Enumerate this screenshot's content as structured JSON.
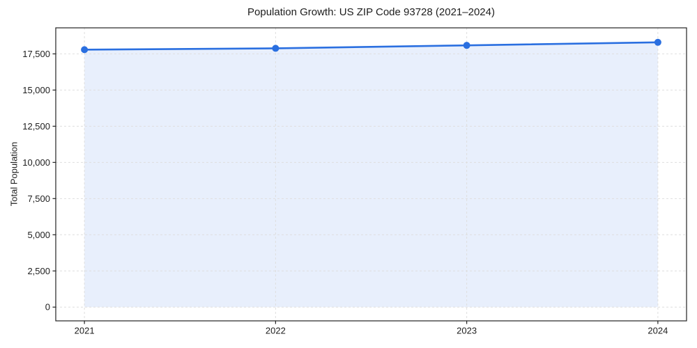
{
  "chart_data": {
    "type": "line",
    "title": "Population Growth: US ZIP Code 93728 (2021–2024)",
    "xlabel": "",
    "ylabel": "Total Population",
    "x": [
      2021,
      2022,
      2023,
      2024
    ],
    "series": [
      {
        "name": "Total Population",
        "values": [
          17790,
          17885,
          18090,
          18300
        ]
      }
    ],
    "xticks": {
      "values": [
        2021,
        2022,
        2023,
        2024
      ],
      "labels": [
        "2021",
        "2022",
        "2023",
        "2024"
      ]
    },
    "yticks": {
      "values": [
        0,
        2500,
        5000,
        7500,
        10000,
        12500,
        15000,
        17500
      ],
      "labels": [
        "0",
        "2,500",
        "5,000",
        "7,500",
        "10,000",
        "12,500",
        "15,000",
        "17,500"
      ]
    },
    "xlim": [
      2020.85,
      2024.15
    ],
    "ylim": [
      -950,
      19300
    ],
    "grid": {
      "show": true,
      "style": "dashed",
      "axes": "both"
    },
    "legend": {
      "show": false
    },
    "area_fill": true,
    "markers": true,
    "marker_radius": 5,
    "line_width": 2.6,
    "colors": {
      "line": "#2a6fe0",
      "marker": "#2a6fe0",
      "area": "#2a6fe0",
      "area_opacity": 0.11,
      "grid": "#dedede",
      "spine": "#222222",
      "text": "#1d1d1d",
      "background": "#ffffff"
    }
  }
}
